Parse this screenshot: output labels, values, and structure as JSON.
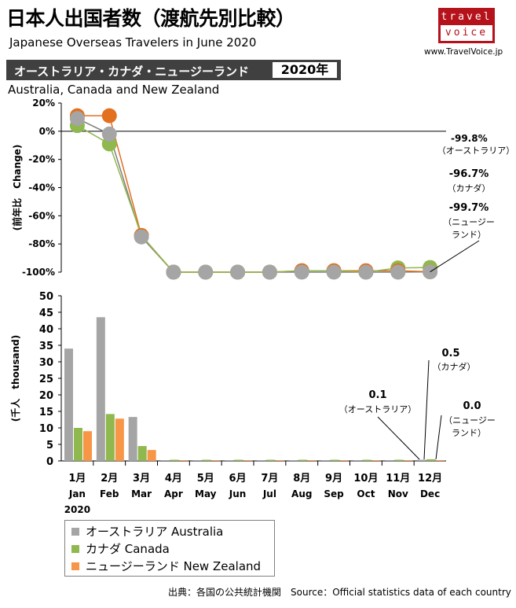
{
  "header": {
    "title": "日本人出国者数（渡航先別比較）",
    "subtitle": "Japanese Overseas Travelers in June 2020",
    "banner_label": "オーストラリア・カナダ・ニュージーランド",
    "year": "2020年",
    "region_en": "Australia, Canada and New Zealand",
    "logo_top": "travel",
    "logo_bottom": "voice",
    "site": "www.TravelVoice.jp"
  },
  "source": "出典：各国の公共統計機関　Source：Official  statistics data of each country",
  "colors": {
    "australia": "#a5a5a5",
    "canada": "#8fb84e",
    "new_zealand": "#f79646",
    "australia_line": "#7f7f7f",
    "new_zealand_line": "#e2701e"
  },
  "chart_data": [
    {
      "type": "line",
      "ylabel": "(前年比　Change)",
      "ylim": [
        -100,
        20
      ],
      "yticks": [
        "20%",
        "0%",
        "-20%",
        "-40%",
        "-60%",
        "-80%",
        "-100%"
      ],
      "yticks_values": [
        20,
        0,
        -20,
        -40,
        -60,
        -80,
        -100
      ],
      "categories": [
        "1月",
        "2月",
        "3月",
        "4月",
        "5月",
        "6月",
        "7月",
        "8月",
        "9月",
        "10月",
        "11月",
        "12月"
      ],
      "series": [
        {
          "name": "オーストラリア Australia",
          "values": [
            9,
            -2,
            -75,
            -100,
            -100,
            -100,
            -100,
            -100,
            -100,
            -100,
            -100,
            -99.8
          ]
        },
        {
          "name": "ニュージーランド New Zealand",
          "values": [
            11,
            11,
            -74,
            -100,
            -100,
            -100,
            -100,
            -99,
            -99,
            -99,
            -99,
            -99.7
          ]
        },
        {
          "name": "カナダ Canada",
          "values": [
            4,
            -9,
            -74,
            -100,
            -100,
            -100,
            -100,
            -99,
            -99,
            -100,
            -97,
            -96.7
          ]
        }
      ],
      "annotations": [
        {
          "value": "-99.8%",
          "label": "（オーストラリア）"
        },
        {
          "value": "-96.7%",
          "label": "（カナダ）"
        },
        {
          "value": "-99.7%",
          "label": "（ニュージー",
          "label2": "ランド）"
        }
      ]
    },
    {
      "type": "bar",
      "ylabel": "(千人　thousand)",
      "ylim": [
        0,
        50
      ],
      "yticks": [
        "50",
        "45",
        "40",
        "35",
        "30",
        "25",
        "20",
        "15",
        "10",
        "5",
        "0"
      ],
      "yticks_values": [
        50,
        45,
        40,
        35,
        30,
        25,
        20,
        15,
        10,
        5,
        0
      ],
      "categories": [
        "1月",
        "2月",
        "3月",
        "4月",
        "5月",
        "6月",
        "7月",
        "8月",
        "9月",
        "10月",
        "11月",
        "12月"
      ],
      "categories_en": [
        "Jan",
        "Feb",
        "Mar",
        "Apr",
        "May",
        "Jun",
        "Jul",
        "Aug",
        "Sep",
        "Oct",
        "Nov",
        "Dec"
      ],
      "first_year": "2020",
      "series": [
        {
          "name": "オーストラリア Australia",
          "values": [
            34,
            43.5,
            13.3,
            0,
            0,
            0,
            0,
            0,
            0,
            0,
            0,
            0.1
          ]
        },
        {
          "name": "カナダ Canada",
          "values": [
            10,
            14.2,
            4.5,
            0.1,
            0.1,
            0.1,
            0.1,
            0.3,
            0.1,
            0.1,
            0.3,
            0.5
          ]
        },
        {
          "name": "ニュージーランド New Zealand",
          "values": [
            9,
            12.8,
            3.3,
            0,
            0,
            0,
            0,
            0,
            0,
            0,
            0,
            0
          ]
        }
      ],
      "annotations": [
        {
          "value": "0.1",
          "label": "（オーストラリア）"
        },
        {
          "value": "0.5",
          "label": "（カナダ）"
        },
        {
          "value": "0.0",
          "label": "（ニュージー",
          "label2": "ランド）"
        }
      ]
    }
  ],
  "legend": [
    {
      "label": "オーストラリア Australia"
    },
    {
      "label": "カナダ Canada"
    },
    {
      "label": "ニュージーランド New Zealand"
    }
  ]
}
